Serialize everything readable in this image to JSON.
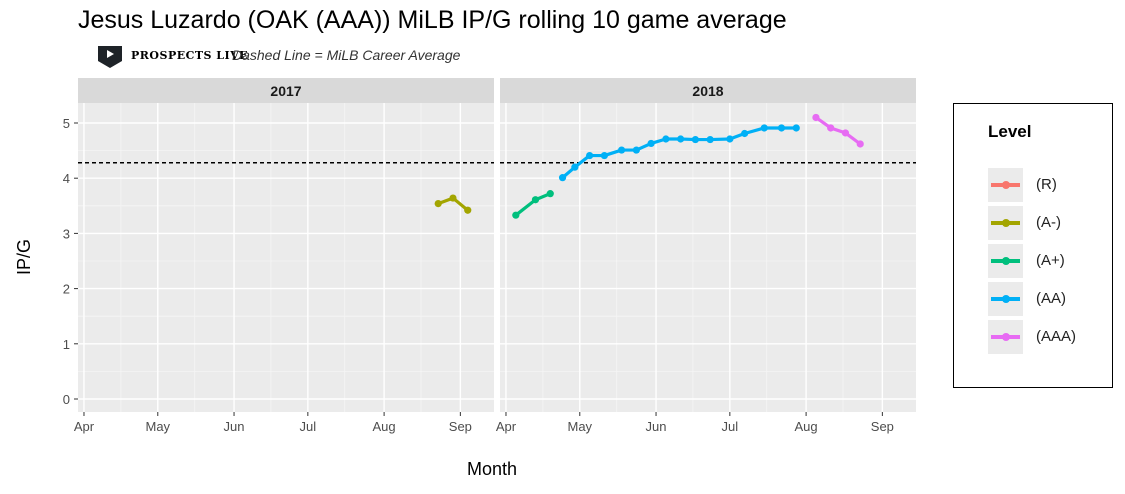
{
  "header": {
    "title": "Jesus Luzardo (OAK (AAA)) MiLB IP/G rolling 10 game average",
    "brand": "PROSPECTS LIVE",
    "note": "Dashed Line = MiLB Career Average"
  },
  "legend": {
    "title": "Level",
    "items": [
      {
        "label": "(R)",
        "color": "#F8766D"
      },
      {
        "label": "(A-)",
        "color": "#A3A500"
      },
      {
        "label": "(A+)",
        "color": "#00BF7D"
      },
      {
        "label": "(AA)",
        "color": "#00B0F6"
      },
      {
        "label": "(AAA)",
        "color": "#E76BF3"
      }
    ]
  },
  "chart_data": {
    "type": "line",
    "xlabel": "Month",
    "ylabel": "IP/G",
    "ylim": [
      0,
      5
    ],
    "yticks": [
      0,
      1,
      2,
      3,
      4,
      5
    ],
    "career_average": 4.28,
    "grid": true,
    "legend_position": "right",
    "panels": [
      {
        "label": "2017",
        "xticks": [
          "Apr",
          "May",
          "Jun",
          "Jul",
          "Aug",
          "Sep"
        ],
        "series": [
          {
            "level": "(A-)",
            "color": "#A3A500",
            "x": [
              "2017-08-23",
              "2017-08-29",
              "2017-09-04"
            ],
            "y": [
              3.54,
              3.64,
              3.42
            ]
          }
        ]
      },
      {
        "label": "2018",
        "xticks": [
          "Apr",
          "May",
          "Jun",
          "Jul",
          "Aug",
          "Sep"
        ],
        "series": [
          {
            "level": "(A+)",
            "color": "#00BF7D",
            "x": [
              "2018-04-05",
              "2018-04-13",
              "2018-04-19"
            ],
            "y": [
              3.33,
              3.61,
              3.72
            ]
          },
          {
            "level": "(AA)",
            "color": "#00B0F6",
            "x": [
              "2018-04-24",
              "2018-04-29",
              "2018-05-05",
              "2018-05-11",
              "2018-05-18",
              "2018-05-24",
              "2018-05-30",
              "2018-06-05",
              "2018-06-11",
              "2018-06-17",
              "2018-06-23",
              "2018-07-01",
              "2018-07-07",
              "2018-07-15",
              "2018-07-22",
              "2018-07-28"
            ],
            "y": [
              4.01,
              4.2,
              4.41,
              4.41,
              4.51,
              4.51,
              4.63,
              4.71,
              4.71,
              4.7,
              4.7,
              4.71,
              4.81,
              4.91,
              4.91,
              4.91
            ]
          },
          {
            "level": "(AAA)",
            "color": "#E76BF3",
            "x": [
              "2018-08-05",
              "2018-08-11",
              "2018-08-17",
              "2018-08-23"
            ],
            "y": [
              5.1,
              4.91,
              4.82,
              4.62
            ]
          }
        ]
      }
    ]
  }
}
